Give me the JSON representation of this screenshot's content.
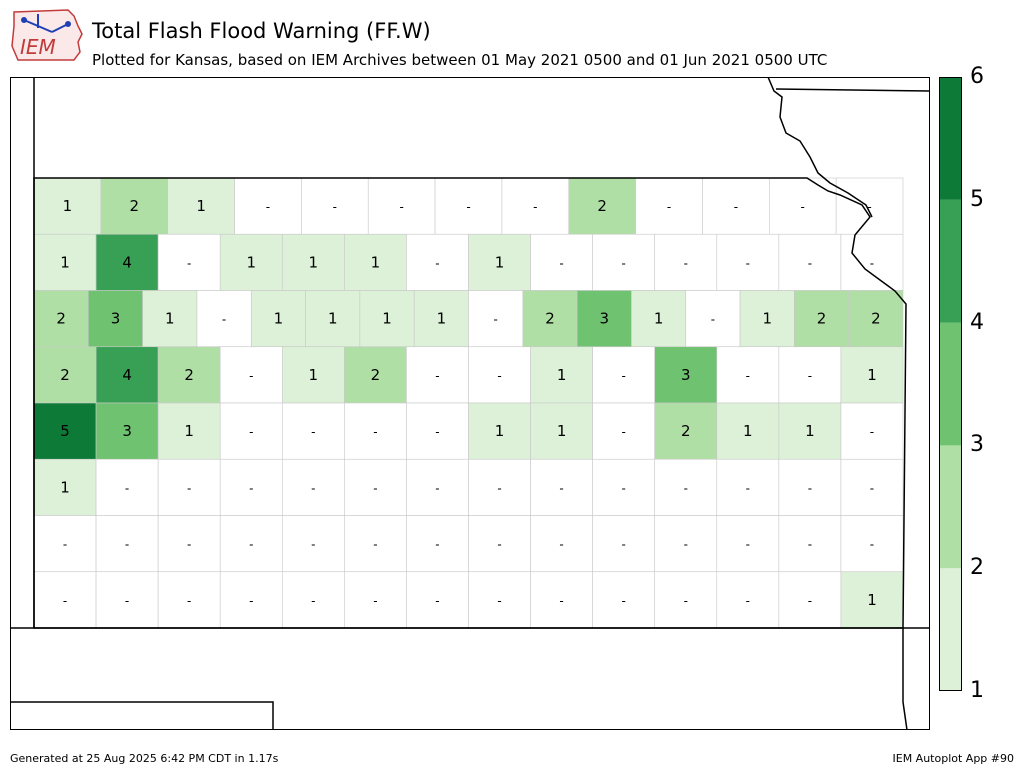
{
  "header": {
    "logo_text": "IEM",
    "title": "Total Flash Flood Warning (FF.W)",
    "subtitle": "Plotted for Kansas, based on IEM Archives  between 01 May 2021 0500 and 01 Jun 2021 0500 UTC"
  },
  "legend": {
    "labels": [
      "6",
      "5",
      "4",
      "3",
      "2",
      "1"
    ],
    "bins": [
      {
        "range": "1-2",
        "color": "#dcf1d7"
      },
      {
        "range": "2-3",
        "color": "#b0dfa6"
      },
      {
        "range": "3-4",
        "color": "#6fc270"
      },
      {
        "range": "4-5",
        "color": "#37a055"
      },
      {
        "range": "5-6",
        "color": "#0d7a37"
      }
    ]
  },
  "map": {
    "state": "Kansas",
    "zero_label": "-",
    "rows": [
      [
        "1",
        "2",
        "1",
        "-",
        "-",
        "-",
        "-",
        "-",
        "2",
        "-",
        "-",
        "-",
        "-"
      ],
      [
        "1",
        "4",
        "-",
        "1",
        "1",
        "1",
        "-",
        "1",
        "-",
        "-",
        "-",
        "-",
        "-",
        "-"
      ],
      [
        "2",
        "3",
        "1",
        "-",
        "1",
        "1",
        "1",
        "1",
        "-",
        "2",
        "3",
        "1",
        "-",
        "1",
        "2",
        "2"
      ],
      [
        "2",
        "4",
        "2",
        "-",
        "1",
        "2",
        "-",
        "-",
        "1",
        "-",
        "3",
        "-",
        "-",
        "1"
      ],
      [
        "5",
        "3",
        "1",
        "-",
        "-",
        "-",
        "-",
        "1",
        "1",
        "-",
        "2",
        "1",
        "1",
        "-"
      ],
      [
        "1",
        "-",
        "-",
        "-",
        "-",
        "-",
        "-",
        "-",
        "-",
        "-",
        "-",
        "-",
        "-",
        "-"
      ],
      [
        "-",
        "-",
        "-",
        "-",
        "-",
        "-",
        "-",
        "-",
        "-",
        "-",
        "-",
        "-",
        "-",
        "-"
      ],
      [
        "-",
        "-",
        "-",
        "-",
        "-",
        "-",
        "-",
        "-",
        "-",
        "-",
        "-",
        "-",
        "-",
        "1"
      ]
    ]
  },
  "footer": {
    "generated": "Generated at 25 Aug 2025 6:42 PM CDT in 1.17s",
    "app": "IEM Autoplot App #90"
  }
}
